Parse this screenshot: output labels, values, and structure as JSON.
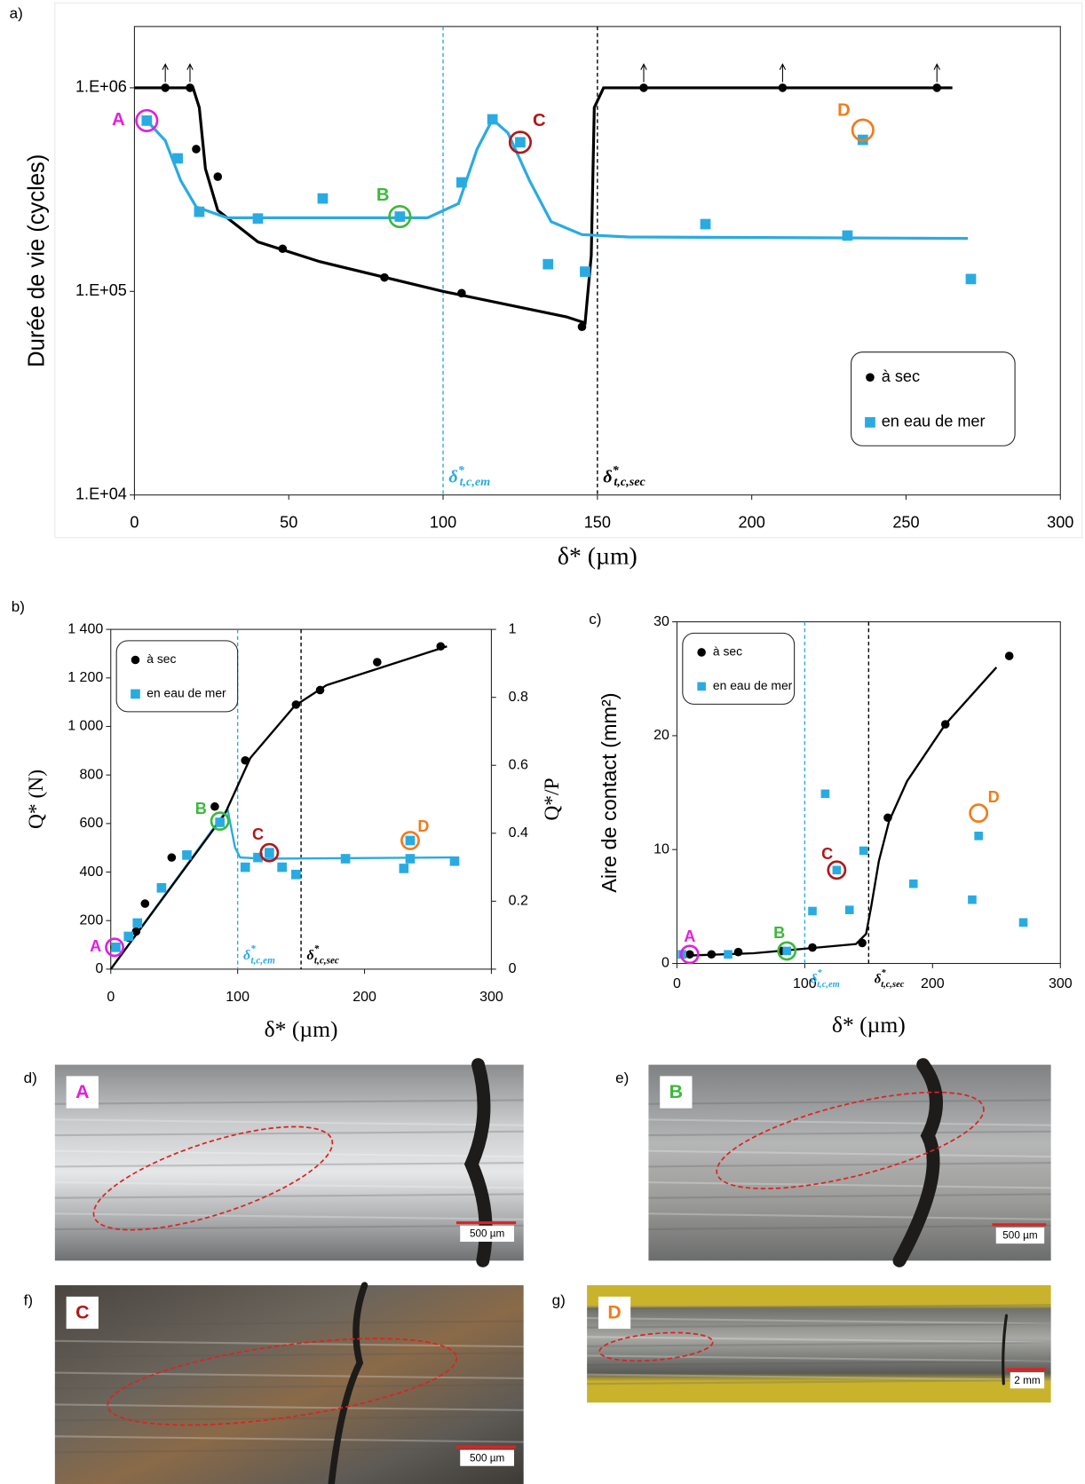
{
  "chart_data": [
    {
      "type": "scatter",
      "panel": "a)",
      "ylabel": "Durée de vie (cycles)",
      "xlabel": "δ* (µm)",
      "xlim": [
        0,
        300
      ],
      "xticks": [
        0,
        50,
        100,
        150,
        200,
        250,
        300
      ],
      "yscale": "log",
      "ylim": [
        10000,
        2000000
      ],
      "yticks": [
        {
          "value": 10000,
          "label": "1.E+04"
        },
        {
          "value": 100000,
          "label": "1.E+05"
        },
        {
          "value": 1000000,
          "label": "1.E+06"
        }
      ],
      "legend": "lower right",
      "series": [
        {
          "name": "à sec",
          "marker": "circle",
          "color": "#000000",
          "x": [
            10,
            18,
            20,
            27,
            48,
            81,
            106,
            145,
            165,
            210,
            260
          ],
          "values": [
            1000000,
            1000000,
            500000,
            366000,
            162000,
            117000,
            98000,
            67000,
            1000000,
            1000000,
            1000000
          ]
        },
        {
          "name": "en eau de mer",
          "marker": "square",
          "color": "#29abe2",
          "x": [
            4,
            14,
            21,
            40,
            61,
            86,
            106,
            116,
            125,
            134,
            146,
            185,
            231,
            236,
            271
          ],
          "values": [
            690000,
            450000,
            246000,
            228000,
            286000,
            233000,
            343000,
            700000,
            540000,
            136000,
            125000,
            214000,
            188000,
            555000,
            115000
          ]
        }
      ],
      "curves": [
        {
          "color": "#000000",
          "x": [
            0,
            19,
            21,
            23,
            27,
            40,
            60,
            100,
            140,
            146,
            148,
            149,
            152,
            265
          ],
          "values": [
            1000000,
            1000000,
            800000,
            400000,
            250000,
            175000,
            140000,
            100000,
            75000,
            70000,
            150000,
            800000,
            1000000,
            1000000
          ]
        },
        {
          "color": "#29abe2",
          "x": [
            4,
            10,
            15,
            20,
            30,
            95,
            105,
            111,
            116,
            121,
            128,
            135,
            145,
            160,
            270
          ],
          "values": [
            690000,
            550000,
            350000,
            260000,
            230000,
            230000,
            270000,
            500000,
            700000,
            600000,
            350000,
            220000,
            190000,
            185000,
            182000
          ]
        }
      ],
      "vlines": [
        {
          "x": 100,
          "color": "#29abe2",
          "label": {
            "base": "δ",
            "sup": "*",
            "sub": "t,c,em"
          }
        },
        {
          "x": 150,
          "color": "#000000",
          "label": {
            "base": "δ",
            "sup": "*",
            "sub": "t,c,sec"
          }
        }
      ],
      "annotations": [
        {
          "text": "A",
          "color": "#e020e0",
          "x": 4,
          "y": 690000
        },
        {
          "text": "B",
          "color": "#3cb83c",
          "x": 86,
          "y": 233000
        },
        {
          "text": "C",
          "color": "#b01818",
          "x": 125,
          "y": 540000
        },
        {
          "text": "D",
          "color": "#f07c1c",
          "x": 236,
          "y": 620000
        }
      ]
    },
    {
      "type": "scatter",
      "panel": "b)",
      "ylabel": "Q* (N)",
      "y2label": "Q*/P",
      "xlabel": "δ* (µm)",
      "xlim": [
        0,
        300
      ],
      "xticks": [
        0,
        100,
        200,
        300
      ],
      "ylim": [
        0,
        1400
      ],
      "yticks": [
        0,
        200,
        400,
        600,
        800,
        {
          "value": 1000,
          "label": "1 000"
        },
        {
          "value": 1200,
          "label": "1 200"
        },
        {
          "value": 1400,
          "label": "1 400"
        }
      ],
      "y2lim": [
        0,
        1
      ],
      "y2ticks": [
        0,
        0.2,
        0.4,
        0.6,
        0.8,
        1
      ],
      "legend": "upper left",
      "series": [
        {
          "name": "à sec",
          "marker": "circle",
          "color": "#000000",
          "x": [
            3,
            14,
            20,
            27,
            48,
            82,
            106,
            146,
            165,
            210,
            260
          ],
          "values": [
            90,
            130,
            155,
            270,
            460,
            670,
            860,
            1090,
            1150,
            1265,
            1330
          ]
        },
        {
          "name": "en eau de mer",
          "marker": "square",
          "color": "#29abe2",
          "x": [
            4,
            14,
            21,
            40,
            60,
            86,
            106,
            116,
            125,
            135,
            146,
            185,
            231,
            236,
            236,
            271
          ],
          "values": [
            90,
            135,
            190,
            335,
            470,
            605,
            420,
            460,
            480,
            420,
            390,
            455,
            415,
            455,
            530,
            445
          ]
        }
      ],
      "curves": [
        {
          "color": "#29abe2",
          "x": [
            0,
            85,
            92,
            98,
            102,
            120,
            270
          ],
          "values": [
            0,
            610,
            660,
            500,
            460,
            455,
            460
          ]
        },
        {
          "color": "#000000",
          "x": [
            0,
            90,
            110,
            145,
            170,
            265
          ],
          "values": [
            0,
            640,
            870,
            1085,
            1170,
            1330
          ]
        }
      ],
      "vlines": [
        {
          "x": 100,
          "color": "#29abe2",
          "label": {
            "base": "δ",
            "sup": "*",
            "sub": "t,c,em"
          }
        },
        {
          "x": 150,
          "color": "#000000",
          "label": {
            "base": "δ",
            "sup": "*",
            "sub": "t,c,sec"
          }
        }
      ],
      "annotations": [
        {
          "text": "A",
          "color": "#e020e0",
          "x": 3,
          "y": 90
        },
        {
          "text": "B",
          "color": "#3cb83c",
          "x": 86,
          "y": 610
        },
        {
          "text": "C",
          "color": "#b01818",
          "x": 125,
          "y": 480
        },
        {
          "text": "D",
          "color": "#f07c1c",
          "x": 236,
          "y": 530
        }
      ]
    },
    {
      "type": "scatter",
      "panel": "c)",
      "ylabel": "Aire de contact (mm²)",
      "xlabel": "δ* (µm)",
      "xlim": [
        0,
        300
      ],
      "xticks": [
        0,
        100,
        200,
        300
      ],
      "ylim": [
        0,
        30
      ],
      "yticks": [
        0,
        10,
        20,
        30
      ],
      "legend": "upper left",
      "series": [
        {
          "name": "à sec",
          "marker": "circle",
          "color": "#000000",
          "x": [
            10,
            27,
            48,
            82,
            106,
            145,
            165,
            210,
            260
          ],
          "values": [
            0.8,
            0.8,
            1.0,
            1.1,
            1.4,
            1.8,
            12.8,
            21,
            27
          ]
        },
        {
          "name": "en eau de mer",
          "marker": "square",
          "color": "#29abe2",
          "x": [
            4,
            40,
            86,
            106,
            116,
            125,
            135,
            146,
            185,
            231,
            236,
            271
          ],
          "values": [
            0.8,
            0.8,
            1.1,
            4.6,
            14.9,
            8.2,
            4.7,
            9.9,
            7.0,
            5.6,
            11.2,
            3.6
          ]
        }
      ],
      "curves": [
        {
          "color": "#000000",
          "x": [
            10,
            60,
            100,
            140,
            148,
            152,
            158,
            166,
            180,
            210,
            250
          ],
          "values": [
            0.7,
            0.9,
            1.3,
            1.7,
            2.6,
            5,
            9,
            12.5,
            16,
            21,
            26
          ]
        }
      ],
      "vlines": [
        {
          "x": 100,
          "color": "#29abe2",
          "label": {
            "base": "δ",
            "sup": "*",
            "sub": "t,c,em"
          }
        },
        {
          "x": 150,
          "color": "#000000",
          "label": {
            "base": "δ",
            "sup": "*",
            "sub": "t,c,sec"
          }
        }
      ],
      "annotations": [
        {
          "text": "A",
          "color": "#e020e0",
          "x": 10,
          "y": 0.8
        },
        {
          "text": "B",
          "color": "#3cb83c",
          "x": 86,
          "y": 1.1
        },
        {
          "text": "C",
          "color": "#b01818",
          "x": 125,
          "y": 8.2
        },
        {
          "text": "D",
          "color": "#f07c1c",
          "x": 236,
          "y": 13.2
        }
      ]
    }
  ],
  "photos": [
    {
      "panel": "d)",
      "letter": "A",
      "color": "#e020e0",
      "scale": "500 µm"
    },
    {
      "panel": "e)",
      "letter": "B",
      "color": "#3cb83c",
      "scale": "500 µm"
    },
    {
      "panel": "f)",
      "letter": "C",
      "color": "#b01818",
      "scale": "500 µm"
    },
    {
      "panel": "g)",
      "letter": "D",
      "color": "#f07c1c",
      "scale": "2 mm"
    }
  ]
}
